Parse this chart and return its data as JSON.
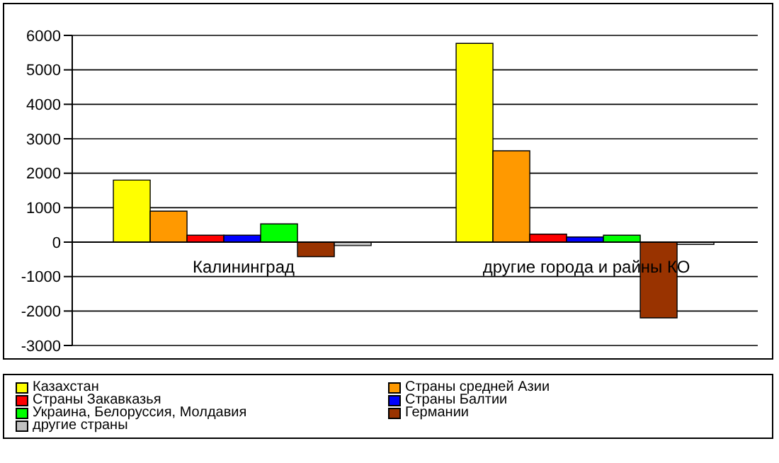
{
  "chart_data": {
    "type": "bar",
    "categories": [
      "Калининград",
      "другие города и райны КО"
    ],
    "series": [
      {
        "name": "Казахстан",
        "color": "#ffff00",
        "values": [
          1800,
          5770
        ]
      },
      {
        "name": "Страны средней Азии",
        "color": "#ff9900",
        "values": [
          900,
          2650
        ]
      },
      {
        "name": "Страны Закавказья",
        "color": "#ff0000",
        "values": [
          200,
          230
        ]
      },
      {
        "name": "Страны Балтии",
        "color": "#0000ff",
        "values": [
          200,
          150
        ]
      },
      {
        "name": "Украина, Белоруссия, Молдавия",
        "color": "#00ff00",
        "values": [
          530,
          200
        ]
      },
      {
        "name": "Германии",
        "color": "#993300",
        "values": [
          -420,
          -2200
        ]
      },
      {
        "name": "другие страны",
        "color": "#c0c0c0",
        "values": [
          -100,
          -70
        ]
      }
    ],
    "ylim": [
      -3000,
      6000
    ],
    "yticks": [
      -3000,
      -2000,
      -1000,
      0,
      1000,
      2000,
      3000,
      4000,
      5000,
      6000
    ],
    "grid": "y",
    "legend": "bottom"
  }
}
